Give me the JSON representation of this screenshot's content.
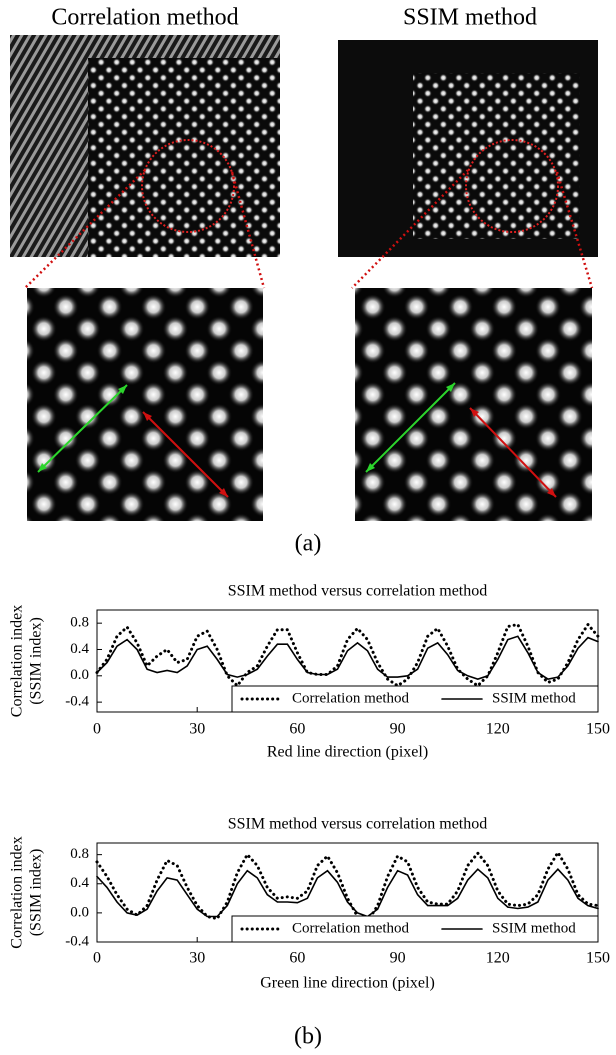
{
  "panel_a": {
    "left_title": "Correlation method",
    "right_title": "SSIM method",
    "label": "(a)"
  },
  "panel_b_label": "(b)",
  "chart_data": [
    {
      "type": "line",
      "title": "SSIM method versus correlation method",
      "xlabel": "Red line direction  (pixel)",
      "ylabel": [
        "Correlation index",
        "(SSIM index)"
      ],
      "xlim": [
        0,
        150
      ],
      "xticks": [
        0,
        30,
        60,
        90,
        120,
        150
      ],
      "ylim": [
        -0.55,
        1.0
      ],
      "yticks": [
        {
          "value": -0.4,
          "label": "-0.4"
        },
        {
          "value": 0,
          "label": "0.0"
        },
        0.4,
        0.8
      ],
      "legend": "lower right",
      "x": [
        0,
        3,
        6,
        9,
        12,
        15,
        18,
        21,
        24,
        27,
        30,
        33,
        36,
        39,
        42,
        45,
        48,
        51,
        54,
        57,
        60,
        63,
        66,
        69,
        72,
        75,
        78,
        81,
        84,
        87,
        90,
        93,
        96,
        99,
        102,
        105,
        108,
        111,
        114,
        117,
        120,
        123,
        126,
        129,
        132,
        135,
        138,
        141,
        144,
        147,
        150
      ],
      "series": [
        {
          "name": "Correlation method",
          "color": "#000000",
          "style": "dotted",
          "values": [
            0.05,
            0.25,
            0.6,
            0.74,
            0.5,
            0.15,
            0.3,
            0.4,
            0.2,
            0.25,
            0.6,
            0.68,
            0.4,
            0.0,
            -0.15,
            0.05,
            0.15,
            0.45,
            0.7,
            0.7,
            0.35,
            0.05,
            0.02,
            0.02,
            0.15,
            0.55,
            0.72,
            0.55,
            0.2,
            -0.05,
            -0.15,
            -0.05,
            0.2,
            0.6,
            0.72,
            0.45,
            0.1,
            -0.05,
            -0.15,
            0.0,
            0.35,
            0.75,
            0.78,
            0.45,
            0.05,
            -0.1,
            -0.05,
            0.2,
            0.55,
            0.78,
            0.6
          ]
        },
        {
          "name": "SSIM method",
          "color": "#000000",
          "style": "solid",
          "values": [
            0.05,
            0.2,
            0.45,
            0.55,
            0.4,
            0.1,
            0.05,
            0.08,
            0.05,
            0.15,
            0.4,
            0.45,
            0.25,
            0.02,
            -0.02,
            0.02,
            0.1,
            0.3,
            0.48,
            0.48,
            0.25,
            0.05,
            0.02,
            0.02,
            0.1,
            0.38,
            0.5,
            0.38,
            0.1,
            -0.02,
            -0.02,
            0.0,
            0.1,
            0.42,
            0.5,
            0.32,
            0.08,
            0.0,
            -0.05,
            0.0,
            0.25,
            0.55,
            0.6,
            0.35,
            0.05,
            -0.05,
            -0.02,
            0.15,
            0.42,
            0.58,
            0.52
          ]
        }
      ]
    },
    {
      "type": "line",
      "title": "SSIM method versus correlation method",
      "xlabel": "Green line direction (pixel)",
      "ylabel": [
        "Correlation index",
        "(SSIM index)"
      ],
      "xlim": [
        0,
        150
      ],
      "xticks": [
        0,
        30,
        60,
        90,
        120,
        150
      ],
      "ylim": [
        -0.4,
        0.96
      ],
      "yticks": [
        {
          "value": -0.4,
          "label": "-0.4"
        },
        {
          "value": 0,
          "label": "0.0"
        },
        0.4,
        0.8
      ],
      "legend": "lower right",
      "x": [
        0,
        3,
        6,
        9,
        12,
        15,
        18,
        21,
        24,
        27,
        30,
        33,
        36,
        39,
        42,
        45,
        48,
        51,
        54,
        57,
        60,
        63,
        66,
        69,
        72,
        75,
        78,
        81,
        84,
        87,
        90,
        93,
        96,
        99,
        102,
        105,
        108,
        111,
        114,
        117,
        120,
        123,
        126,
        129,
        132,
        135,
        138,
        141,
        144,
        147,
        150
      ],
      "series": [
        {
          "name": "Correlation method",
          "color": "#000000",
          "style": "dotted",
          "values": [
            0.7,
            0.5,
            0.25,
            0.05,
            -0.03,
            0.1,
            0.45,
            0.72,
            0.65,
            0.35,
            0.1,
            -0.05,
            -0.08,
            0.15,
            0.55,
            0.8,
            0.65,
            0.35,
            0.2,
            0.22,
            0.2,
            0.3,
            0.65,
            0.78,
            0.55,
            0.2,
            -0.05,
            -0.12,
            0.1,
            0.5,
            0.78,
            0.7,
            0.35,
            0.15,
            0.12,
            0.12,
            0.3,
            0.65,
            0.82,
            0.65,
            0.3,
            0.12,
            0.1,
            0.12,
            0.25,
            0.6,
            0.83,
            0.6,
            0.25,
            0.12,
            0.1
          ]
        },
        {
          "name": "SSIM method",
          "color": "#000000",
          "style": "solid",
          "values": [
            0.5,
            0.35,
            0.15,
            0.0,
            -0.03,
            0.05,
            0.3,
            0.48,
            0.45,
            0.25,
            0.05,
            -0.05,
            -0.05,
            0.1,
            0.4,
            0.58,
            0.48,
            0.25,
            0.15,
            0.15,
            0.14,
            0.2,
            0.48,
            0.58,
            0.42,
            0.15,
            0.0,
            -0.05,
            0.05,
            0.35,
            0.58,
            0.52,
            0.25,
            0.1,
            0.1,
            0.1,
            0.2,
            0.45,
            0.6,
            0.48,
            0.2,
            0.08,
            0.06,
            0.08,
            0.15,
            0.45,
            0.6,
            0.45,
            0.2,
            0.1,
            0.06
          ]
        }
      ]
    }
  ]
}
